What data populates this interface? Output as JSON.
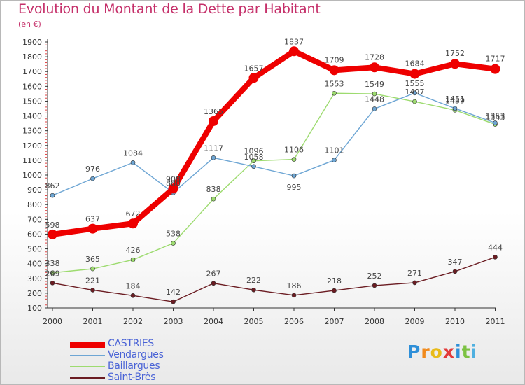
{
  "title": "Evolution du Montant de la Dette par Habitant",
  "subtitle": "(en €)",
  "logo": {
    "letters": [
      "P",
      "r",
      "o",
      "x",
      "i",
      "t",
      "i"
    ],
    "colors": [
      "#2e8fd8",
      "#f18a1c",
      "#e8bb1a",
      "#e23a3a",
      "#2e8fd8",
      "#7cc242",
      "#4fb0e0"
    ]
  },
  "chart_data": {
    "type": "line",
    "x": [
      "2000",
      "2001",
      "2002",
      "2003",
      "2004",
      "2005",
      "2006",
      "2007",
      "2008",
      "2009",
      "2010",
      "2011"
    ],
    "ylim": [
      100,
      1900
    ],
    "yticks": [
      "100",
      "200",
      "300",
      "400",
      "500",
      "600",
      "700",
      "800",
      "900",
      "1000",
      "1100",
      "1200",
      "1300",
      "1400",
      "1500",
      "1600",
      "1700",
      "1800",
      "1900"
    ],
    "grid": false,
    "legend_position": "bottom-left",
    "series": [
      {
        "name": "Saint-Brès",
        "color": "#6b1c22",
        "values": [
          269,
          221,
          184,
          142,
          267,
          222,
          186,
          218,
          252,
          271,
          347,
          444
        ]
      },
      {
        "name": "Baillargues",
        "color": "#9ddb6f",
        "values": [
          338,
          365,
          426,
          538,
          838,
          1096,
          1106,
          1553,
          1549,
          1497,
          1439,
          1343
        ]
      },
      {
        "name": "Vendargues",
        "color": "#6ea6d4",
        "values": [
          862,
          976,
          1084,
          880,
          1117,
          1058,
          995,
          1101,
          1448,
          1555,
          1451,
          1353
        ]
      },
      {
        "name": "CASTRIES",
        "color": "#ee0000",
        "values": [
          598,
          637,
          672,
          908,
          1365,
          1657,
          1837,
          1709,
          1728,
          1684,
          1752,
          1717
        ]
      }
    ]
  }
}
